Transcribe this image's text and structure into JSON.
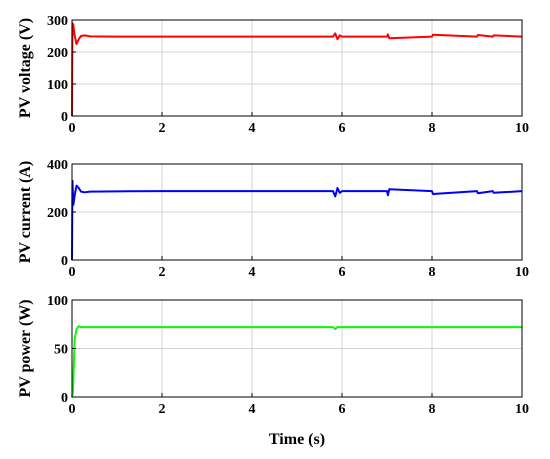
{
  "chart_data": [
    {
      "type": "line",
      "ylabel": "PV voltage (V)",
      "xlabel": "",
      "xlim": [
        0,
        10
      ],
      "ylim": [
        0,
        300
      ],
      "xticks": [
        0,
        2,
        4,
        6,
        8,
        10
      ],
      "yticks": [
        0,
        100,
        200,
        300
      ],
      "grid": true,
      "color": "#ff0000",
      "series": [
        {
          "x": [
            0,
            0.01,
            0.03,
            0.06,
            0.1,
            0.15,
            0.2,
            0.28,
            0.4,
            1.0,
            2.0,
            4.0,
            5.8,
            5.85,
            5.9,
            5.95,
            6.0,
            7.0,
            7.02,
            7.05,
            8.0,
            8.02,
            9.0,
            9.02,
            9.35,
            9.37,
            10
          ],
          "y": [
            0,
            290,
            285,
            250,
            225,
            240,
            250,
            252,
            249,
            248,
            248,
            248,
            248,
            258,
            240,
            252,
            248,
            248,
            255,
            243,
            248,
            254,
            248,
            253,
            248,
            252,
            248
          ]
        }
      ]
    },
    {
      "type": "line",
      "ylabel": "PV current (A)",
      "xlabel": "",
      "xlim": [
        0,
        10
      ],
      "ylim": [
        0,
        400
      ],
      "xticks": [
        0,
        2,
        4,
        6,
        8,
        10
      ],
      "yticks": [
        0,
        200,
        400
      ],
      "grid": true,
      "color": "#0000ff",
      "series": [
        {
          "x": [
            0,
            0.01,
            0.03,
            0.06,
            0.1,
            0.15,
            0.2,
            0.28,
            0.4,
            1.0,
            2.0,
            4.0,
            5.8,
            5.85,
            5.9,
            5.95,
            6.0,
            7.0,
            7.02,
            7.05,
            8.0,
            8.02,
            9.0,
            9.02,
            9.35,
            9.37,
            10
          ],
          "y": [
            0,
            330,
            230,
            270,
            310,
            300,
            285,
            282,
            285,
            286,
            287,
            287,
            287,
            265,
            300,
            280,
            287,
            287,
            270,
            295,
            287,
            275,
            287,
            278,
            287,
            280,
            287
          ]
        }
      ]
    },
    {
      "type": "line",
      "ylabel": "PV power (W)",
      "xlabel": "Time (s)",
      "xlim": [
        0,
        10
      ],
      "ylim": [
        0,
        100
      ],
      "xticks": [
        0,
        2,
        4,
        6,
        8,
        10
      ],
      "yticks": [
        0,
        50,
        100
      ],
      "grid": true,
      "color": "#00ff00",
      "series": [
        {
          "x": [
            0,
            0.02,
            0.06,
            0.1,
            0.15,
            0.2,
            0.3,
            1.0,
            2.0,
            4.0,
            5.8,
            5.85,
            5.9,
            6.0,
            7.0,
            10
          ],
          "y": [
            0,
            5,
            60,
            70,
            73,
            72,
            72,
            72,
            72,
            72,
            72,
            70,
            72,
            72,
            72,
            72
          ]
        }
      ]
    }
  ]
}
